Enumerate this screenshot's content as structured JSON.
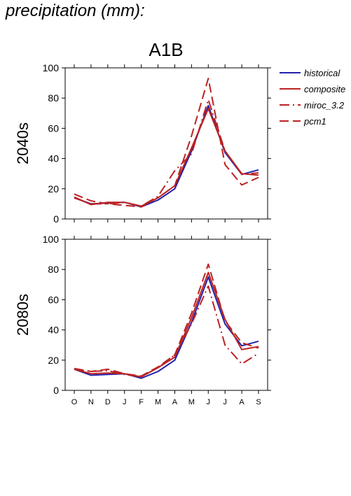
{
  "title": "precipitation (mm):",
  "chart_data": {
    "type": "line",
    "title": "A1B",
    "categories": [
      "O",
      "N",
      "D",
      "J",
      "F",
      "M",
      "A",
      "M",
      "J",
      "J",
      "A",
      "S"
    ],
    "ylim": [
      0,
      100
    ],
    "yticks": [
      0,
      20,
      40,
      60,
      80,
      100
    ],
    "legend": {
      "position": "right",
      "entries": [
        {
          "name": "historical",
          "color": "#2222aa",
          "dash": "solid"
        },
        {
          "name": "composite",
          "color": "#bb2222",
          "dash": "solid"
        },
        {
          "name": "miroc_3.2",
          "color": "#bb2222",
          "dash": "dashdot"
        },
        {
          "name": "pcm1",
          "color": "#bb2222",
          "dash": "dashed"
        }
      ]
    },
    "panels": [
      {
        "ylabel": "2040s",
        "series": [
          {
            "name": "historical",
            "values": [
              14,
              10,
              10.5,
              11,
              8,
              12.5,
              20,
              45,
              75,
              44,
              29.5,
              32.5
            ]
          },
          {
            "name": "composite",
            "values": [
              14.5,
              9.5,
              11,
              11,
              8.5,
              14,
              22,
              47,
              73,
              45,
              30,
              29
            ]
          },
          {
            "name": "miroc_3.2",
            "values": [
              14,
              10,
              10,
              11,
              8.5,
              15,
              32,
              43,
              79,
              45,
              29.5,
              30.5
            ]
          },
          {
            "name": "pcm1",
            "values": [
              16.5,
              12,
              10,
              9,
              8,
              14,
              22,
              55,
              93,
              36,
              22.5,
              27.5
            ]
          }
        ]
      },
      {
        "ylabel": "2080s",
        "series": [
          {
            "name": "historical",
            "values": [
              14,
              10,
              10.5,
              11,
              8,
              12.5,
              20,
              45,
              75,
              44,
              29.5,
              32.5
            ]
          },
          {
            "name": "composite",
            "values": [
              14,
              11,
              11.5,
              11,
              9,
              15,
              22,
              48,
              78,
              47,
              27,
              29
            ]
          },
          {
            "name": "miroc_3.2",
            "values": [
              14,
              12.5,
              13,
              10.5,
              9,
              15,
              23.5,
              44,
              69,
              30,
              17.5,
              24.5
            ]
          },
          {
            "name": "pcm1",
            "values": [
              14.5,
              12.5,
              14,
              11,
              9.5,
              15.5,
              23.5,
              51,
              83.5,
              46,
              31.5,
              28
            ]
          }
        ]
      }
    ]
  }
}
